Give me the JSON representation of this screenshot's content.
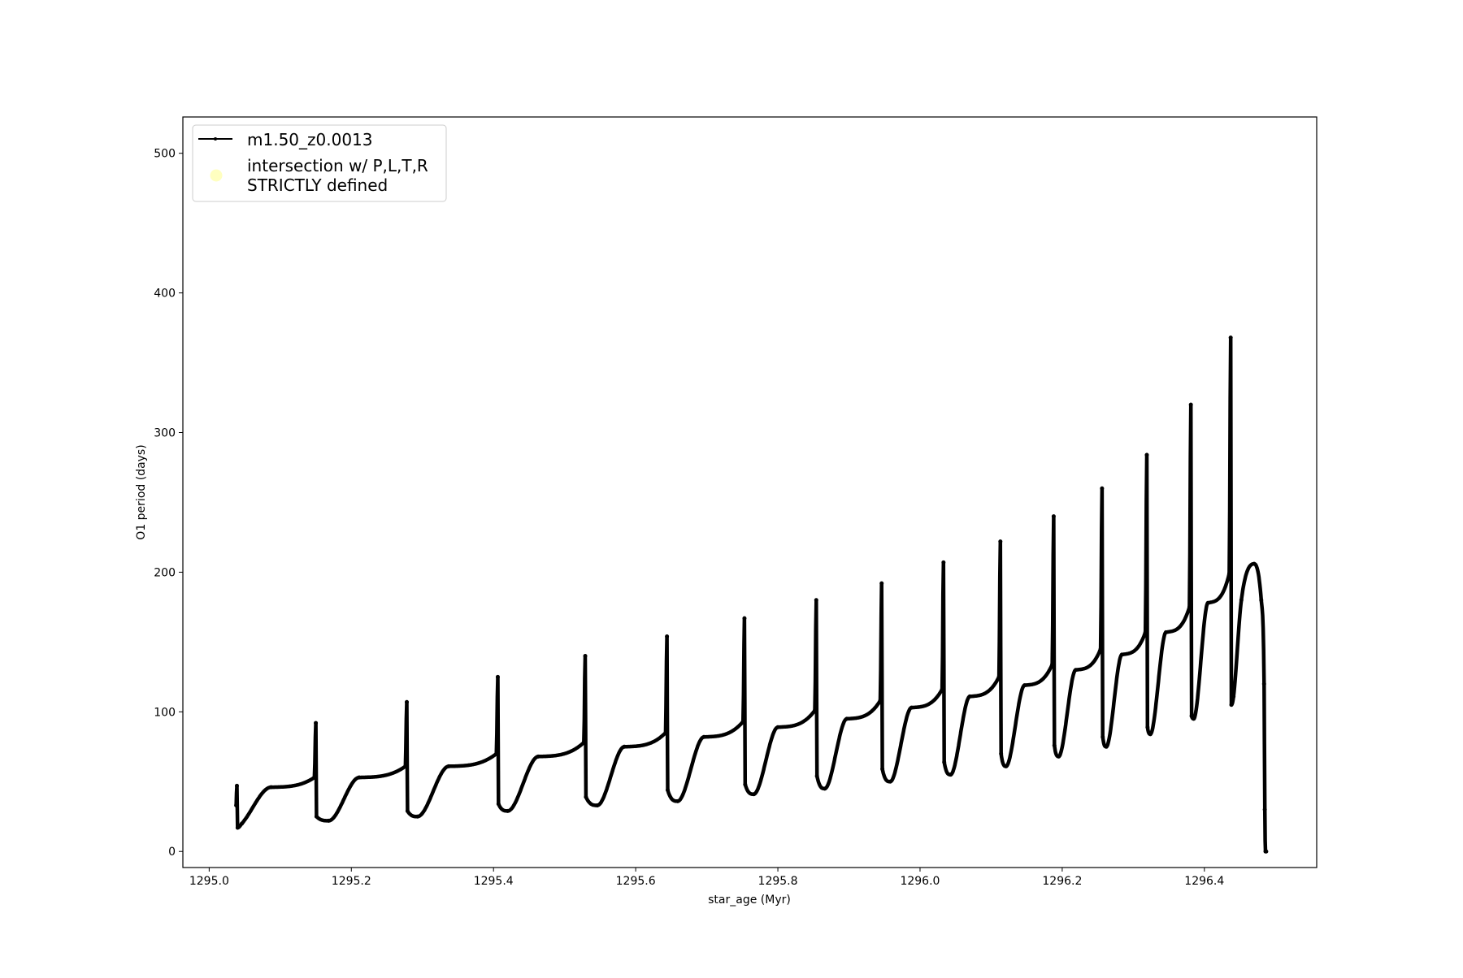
{
  "chart_data": {
    "type": "line",
    "title": "",
    "xlabel": "star_age (Myr)",
    "ylabel": "O1 period (days)",
    "xlim": [
      1294.963,
      1296.558
    ],
    "ylim": [
      -11.5,
      526
    ],
    "grid": false,
    "legend_placement": "upper left",
    "xticks": [
      1295.0,
      1295.2,
      1295.4,
      1295.6,
      1295.8,
      1296.0,
      1296.2,
      1296.4
    ],
    "xtick_labels": [
      "1295.0",
      "1295.2",
      "1295.4",
      "1295.6",
      "1295.8",
      "1296.0",
      "1296.2",
      "1296.4"
    ],
    "yticks": [
      0,
      100,
      200,
      300,
      400,
      500
    ],
    "ytick_labels": [
      "0",
      "100",
      "200",
      "300",
      "400",
      "500"
    ],
    "legend": [
      {
        "label": "m1.50_z0.0013",
        "kind": "line-marker",
        "color": "#000000"
      },
      {
        "label_lines": [
          "intersection w/ P,L,T,R",
          "STRICTLY defined"
        ],
        "kind": "marker",
        "color": "#ffffc0"
      }
    ],
    "series": [
      {
        "name": "m1.50_z0.0013",
        "color": "#000000",
        "x": [
          1295.038,
          1295.039,
          1295.04,
          1295.046,
          1295.087,
          1295.148,
          1295.15,
          1295.151,
          1295.168,
          1295.211,
          1295.276,
          1295.278,
          1295.279,
          1295.293,
          1295.337,
          1295.404,
          1295.406,
          1295.407,
          1295.42,
          1295.463,
          1295.527,
          1295.529,
          1295.53,
          1295.546,
          1295.584,
          1295.642,
          1295.644,
          1295.645,
          1295.659,
          1295.696,
          1295.751,
          1295.753,
          1295.754,
          1295.766,
          1295.8,
          1295.852,
          1295.854,
          1295.855,
          1295.866,
          1295.897,
          1295.944,
          1295.946,
          1295.947,
          1295.958,
          1295.988,
          1296.031,
          1296.033,
          1296.034,
          1296.043,
          1296.07,
          1296.111,
          1296.113,
          1296.114,
          1296.121,
          1296.147,
          1296.186,
          1296.188,
          1296.189,
          1296.195,
          1296.219,
          1296.254,
          1296.256,
          1296.257,
          1296.262,
          1296.284,
          1296.317,
          1296.319,
          1296.32,
          1296.324,
          1296.346,
          1296.379,
          1296.381,
          1296.382,
          1296.385,
          1296.405,
          1296.435,
          1296.437,
          1296.438,
          1296.441,
          1296.452,
          1296.47,
          1296.48,
          1296.484,
          1296.485,
          1296.486,
          1296.487
        ],
        "y": [
          33,
          47,
          17,
          20,
          46,
          53,
          92,
          25,
          22,
          53,
          61,
          107,
          29,
          25,
          61,
          70,
          125,
          34,
          29,
          68,
          78,
          140,
          39,
          33,
          75,
          85,
          154,
          44,
          36,
          82,
          93,
          167,
          48,
          41,
          89,
          101,
          180,
          54,
          45,
          95,
          108,
          192,
          59,
          50,
          103,
          116,
          207,
          64,
          55,
          111,
          125,
          222,
          70,
          61,
          119,
          134,
          240,
          76,
          68,
          130,
          145,
          260,
          82,
          75,
          141,
          157,
          284,
          89,
          84,
          157,
          175,
          320,
          97,
          95,
          178,
          199,
          368,
          105,
          111,
          180,
          206,
          180,
          120,
          30,
          0,
          0
        ]
      }
    ]
  }
}
